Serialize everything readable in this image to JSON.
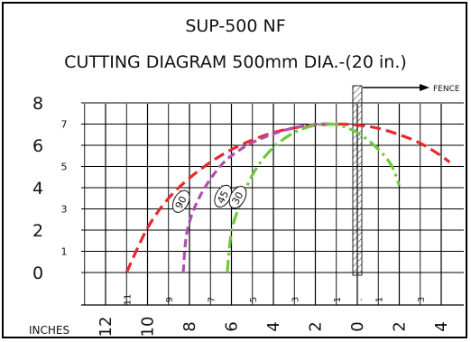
{
  "title": "SUP-500 NF",
  "subtitle": "CUTTING DIAGRAM 500mm DIA.-(20 in.)",
  "fence_label": "FENCE",
  "units_label": "INCHES",
  "colors": {
    "grid": "#000000",
    "curve_90": "#e8272b",
    "curve_45": "#b14fb1",
    "curve_30": "#6cc93a",
    "fence_hatch": "#555555"
  },
  "chart_data": {
    "type": "line",
    "title": "SUP-500 NF",
    "subtitle": "CUTTING DIAGRAM 500mm DIA.-(20 in.)",
    "xlabel": "INCHES",
    "ylabel": "",
    "x_direction": "decreasing-left-to-right",
    "xlim": [
      12.5,
      -4.5
    ],
    "ylim": [
      -0.2,
      8.2
    ],
    "x_major_ticks": [
      "12",
      "10",
      "8",
      "6",
      "4",
      "2",
      "0",
      "2",
      "4"
    ],
    "x_minor_ticks": [
      "11",
      "9",
      "7",
      "5",
      "3",
      "1",
      ".",
      "1",
      "3"
    ],
    "y_major_ticks": [
      "8",
      "6",
      "4",
      "2",
      "0"
    ],
    "y_minor_ticks": [
      "7",
      "5",
      "3",
      "1"
    ],
    "grid": true,
    "fence_position_x": 0,
    "series": [
      {
        "name": "90°",
        "label": "90",
        "color": "#e8272b",
        "dash": "long",
        "x": [
          11,
          10,
          9,
          8,
          7,
          6,
          5,
          4,
          3,
          2,
          1,
          0,
          -1,
          -2,
          -3,
          -4,
          -4.4
        ],
        "y": [
          0,
          2.1,
          3.5,
          4.45,
          5.2,
          5.8,
          6.25,
          6.6,
          6.82,
          6.95,
          7.0,
          6.95,
          6.8,
          6.5,
          6.1,
          5.5,
          5.2
        ]
      },
      {
        "name": "45°",
        "label": "45",
        "color": "#b14fb1",
        "dash": "medium",
        "x": [
          8.3,
          8.1,
          7.5,
          6.5,
          5.5,
          4.5,
          3.5,
          2.5,
          1.7,
          1.2
        ],
        "y": [
          0,
          2.0,
          3.6,
          5.05,
          5.85,
          6.35,
          6.7,
          6.92,
          7.0,
          7.0
        ]
      },
      {
        "name": "30°",
        "label": "30",
        "color": "#6cc93a",
        "dash": "dash-dot",
        "x": [
          6.2,
          6.0,
          5.6,
          5.0,
          4.2,
          3.2,
          2.2,
          1.2,
          0.2,
          -0.8,
          -1.6,
          -2.0
        ],
        "y": [
          0,
          1.9,
          3.2,
          4.6,
          5.7,
          6.5,
          6.9,
          7.0,
          6.7,
          6.0,
          5.1,
          4.1
        ]
      }
    ]
  }
}
